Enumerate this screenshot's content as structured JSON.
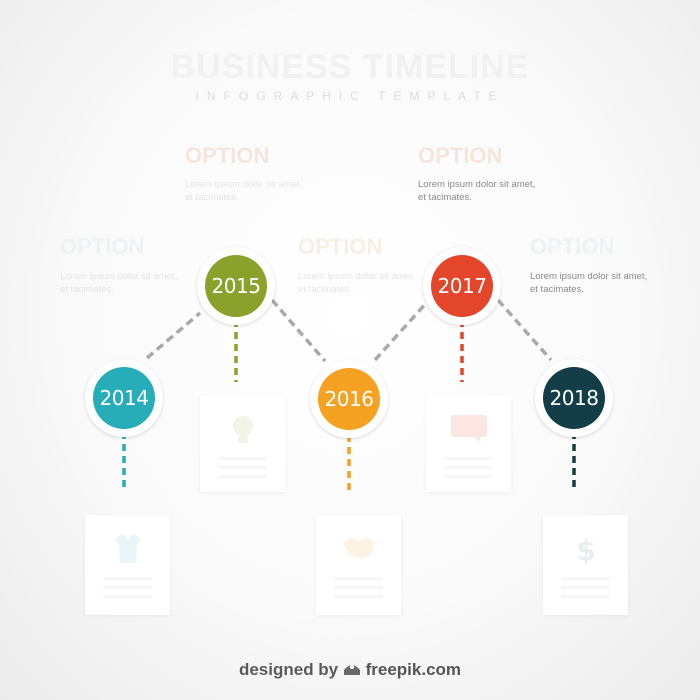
{
  "header": {
    "title": "BUSINESS TIMELINE",
    "subtitle": "INFOGRAPHIC TEMPLATE"
  },
  "colors": {
    "teal": "#26adb8",
    "green": "#8aa12c",
    "orange": "#f5a223",
    "red": "#e3462b",
    "navy": "#133d47",
    "connector": "#a9a9a9"
  },
  "nodes": [
    {
      "year": "2014",
      "color": "#26adb8"
    },
    {
      "year": "2015",
      "color": "#8aa12c"
    },
    {
      "year": "2016",
      "color": "#f5a223"
    },
    {
      "year": "2017",
      "color": "#e3462b"
    },
    {
      "year": "2018",
      "color": "#133d47"
    }
  ],
  "options": {
    "top_left": {
      "heading": "OPTION",
      "text": "Lorem ipsum dolor sit amet, et tacimates."
    },
    "top_right": {
      "heading": "OPTION",
      "text": "Lorem ipsum dolor sit amet, et tacimates."
    },
    "mid_1": {
      "heading": "OPTION",
      "text": "Lorem ipsum dolor sit amet, et tacimates."
    },
    "mid_2": {
      "heading": "OPTION",
      "text": "Lorem ipsum dolor sit amet, et tacimates."
    },
    "mid_3": {
      "heading": "OPTION",
      "text": "Lorem ipsum dolor sit amet, et tacimates."
    }
  },
  "card_icons": [
    "shirt-icon",
    "lightbulb-icon",
    "handshake-icon",
    "chat-icon",
    "dollar-icon"
  ],
  "credit": {
    "prefix": "designed by",
    "brand": "freepik.com"
  }
}
